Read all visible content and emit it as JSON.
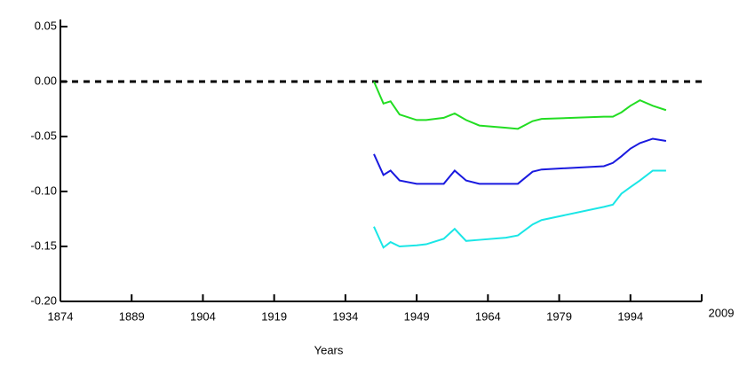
{
  "chart_data": {
    "type": "line",
    "x_label": "Years",
    "xlim": [
      1874,
      2009
    ],
    "xticks": [
      1874,
      1889,
      1904,
      1919,
      1934,
      1949,
      1964,
      1979,
      1994,
      2009
    ],
    "ylim": [
      -0.2,
      0.05
    ],
    "yticks": [
      {
        "value": -0.2,
        "label": "-0.20"
      },
      {
        "value": -0.15,
        "label": "-0.15"
      },
      {
        "value": -0.1,
        "label": "-0.10"
      },
      {
        "value": -0.05,
        "label": "-0.05"
      },
      {
        "value": 0,
        "label": "0.00"
      },
      0.05
    ],
    "reference_line": 0,
    "x": [
      1940,
      1942,
      1943.5,
      1945.4,
      1949,
      1951,
      1954.7,
      1957,
      1959.4,
      1962.2,
      1967.8,
      1970.3,
      1973.4,
      1975.3,
      1988.4,
      1990.3,
      1992.1,
      1994,
      1996,
      1998.7,
      2001.5
    ],
    "series": [
      {
        "color": "#22dd22",
        "values": [
          0,
          -0.02,
          -0.018,
          -0.03,
          -0.035,
          -0.035,
          -0.033,
          -0.029,
          -0.035,
          -0.04,
          -0.042,
          -0.043,
          -0.036,
          -0.034,
          -0.032,
          -0.032,
          -0.028,
          -0.022,
          -0.017,
          -0.022,
          -0.026
        ]
      },
      {
        "color": "#1a1adf",
        "values": [
          -0.066,
          -0.085,
          -0.081,
          -0.09,
          -0.093,
          -0.093,
          -0.093,
          -0.081,
          -0.09,
          -0.093,
          -0.093,
          -0.093,
          -0.082,
          -0.08,
          -0.077,
          -0.074,
          -0.068,
          -0.061,
          -0.056,
          -0.052,
          -0.054
        ]
      },
      {
        "color": "#1ae6e6",
        "values": [
          -0.132,
          -0.151,
          -0.146,
          -0.15,
          -0.149,
          -0.148,
          -0.143,
          -0.134,
          -0.145,
          -0.144,
          -0.142,
          -0.14,
          -0.13,
          -0.126,
          -0.114,
          -0.112,
          -0.102,
          -0.096,
          -0.09,
          -0.081,
          -0.081
        ]
      }
    ]
  }
}
